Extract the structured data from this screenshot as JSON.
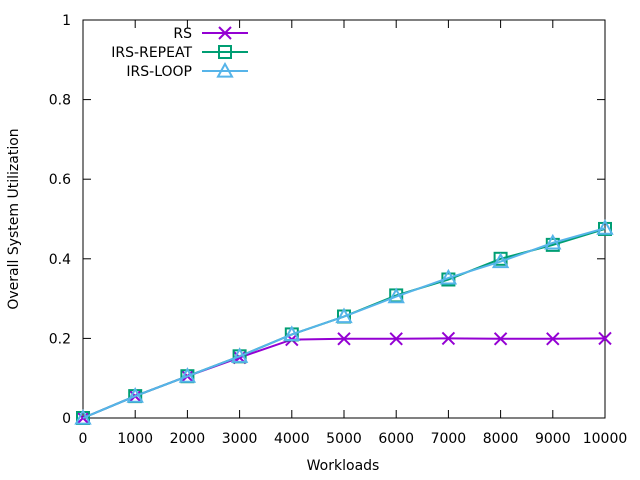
{
  "chart_data": {
    "type": "line",
    "title": "",
    "xlabel": "Workloads",
    "ylabel": "Overall System Utilization",
    "xlim": [
      0,
      10000
    ],
    "ylim": [
      0,
      1
    ],
    "grid": false,
    "legend_position": "top-left",
    "x_ticks": [
      "0",
      "1000",
      "2000",
      "3000",
      "4000",
      "5000",
      "6000",
      "7000",
      "8000",
      "9000",
      "10000"
    ],
    "y_ticks": [
      "0",
      "0.2",
      "0.4",
      "0.6",
      "0.8",
      "1"
    ],
    "x": [
      0,
      1000,
      2000,
      3000,
      4000,
      5000,
      6000,
      7000,
      8000,
      9000,
      10000
    ],
    "series": [
      {
        "name": "RS",
        "color": "#9400d3",
        "marker": "x-cross",
        "values": [
          0,
          0.055,
          0.105,
          0.152,
          0.197,
          0.199,
          0.199,
          0.2,
          0.199,
          0.199,
          0.2
        ]
      },
      {
        "name": "IRS-REPEAT",
        "color": "#009e73",
        "marker": "open-square",
        "values": [
          0,
          0.055,
          0.105,
          0.155,
          0.21,
          0.255,
          0.308,
          0.348,
          0.4,
          0.435,
          0.475
        ]
      },
      {
        "name": "IRS-LOOP",
        "color": "#56b4e9",
        "marker": "open-triangle",
        "values": [
          0,
          0.055,
          0.105,
          0.155,
          0.21,
          0.255,
          0.305,
          0.352,
          0.393,
          0.44,
          0.477
        ]
      }
    ]
  }
}
